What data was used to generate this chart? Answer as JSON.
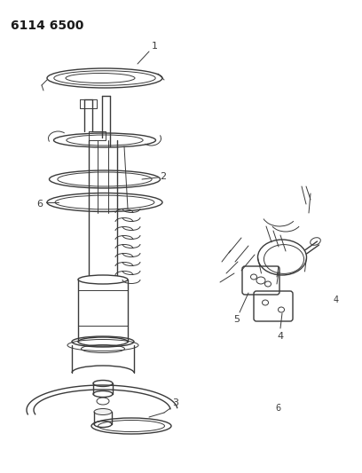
{
  "title": "6114 6500",
  "title_fontsize": 10,
  "title_fontweight": "bold",
  "title_color": "#1a1a1a",
  "bg_color": "#ffffff",
  "line_color": "#3a3a3a",
  "fig_width": 4.08,
  "fig_height": 5.33,
  "dpi": 100
}
